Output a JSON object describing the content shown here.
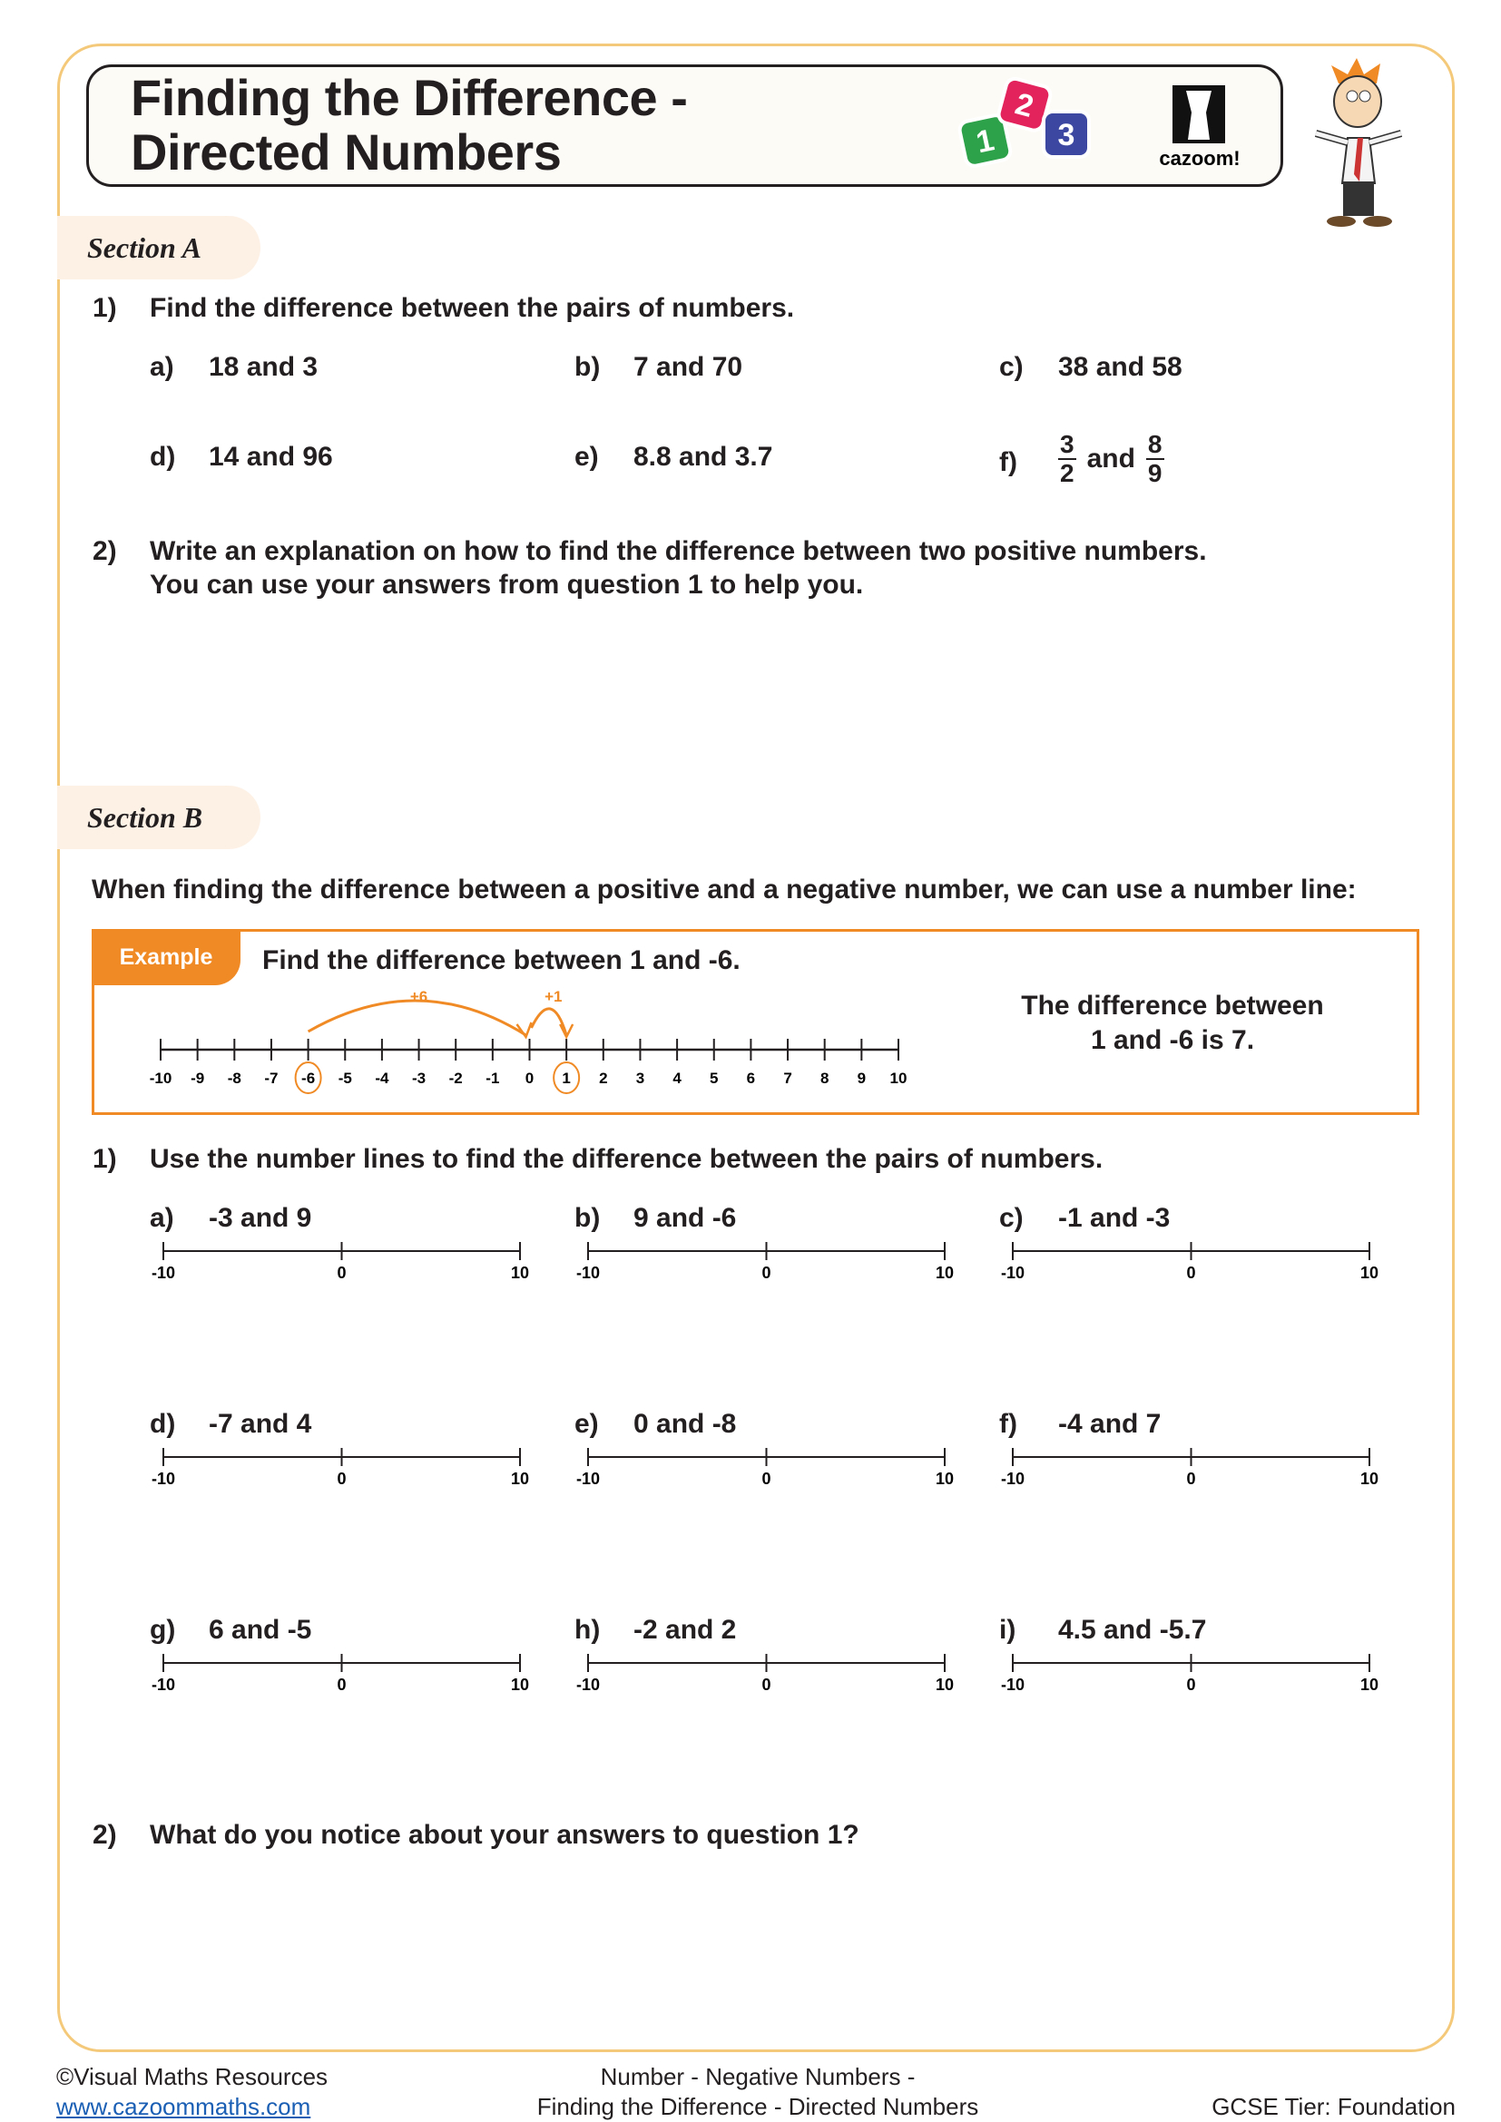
{
  "header": {
    "title_line1": "Finding the Difference -",
    "title_line2": "Directed Numbers",
    "logo_blocks": [
      "1",
      "2",
      "3"
    ],
    "logo_text": "cazoom!"
  },
  "colors": {
    "accent": "#f08a24",
    "frame": "#f4c97a",
    "tab_bg": "#fdf1e6",
    "block1": "#2ea24a",
    "block2": "#e3245c",
    "block3": "#3b47a0"
  },
  "section_a": {
    "label": "Section A",
    "q1": {
      "num": "1)",
      "text": "Find the difference between the pairs of numbers.",
      "items": [
        {
          "label": "a)",
          "value": "18 and 3"
        },
        {
          "label": "b)",
          "value": "7 and 70"
        },
        {
          "label": "c)",
          "value": "38 and 58"
        },
        {
          "label": "d)",
          "value": "14 and 96"
        },
        {
          "label": "e)",
          "value": "8.8 and 3.7"
        }
      ],
      "item_f": {
        "label": "f)",
        "num1": "3",
        "den1": "2",
        "and": "and",
        "num2": "8",
        "den2": "9"
      }
    },
    "q2": {
      "num": "2)",
      "line1": "Write an explanation on how to find the difference between two positive numbers.",
      "line2": "You can use your answers from question 1 to help you."
    }
  },
  "section_b": {
    "label": "Section B",
    "intro": "When finding the difference between a positive and a negative number, we can use a number line:",
    "example": {
      "tab": "Example",
      "question": "Find the difference between 1 and -6.",
      "jump1": "+6",
      "jump2": "+1",
      "min": -10,
      "max": 10,
      "circled": [
        -6,
        1
      ],
      "answer_line1": "The difference between",
      "answer_line2": "1 and -6 is 7."
    },
    "q1": {
      "num": "1)",
      "text": "Use the number lines to find the difference between the pairs of numbers.",
      "items": [
        {
          "label": "a)",
          "value": "-3 and 9"
        },
        {
          "label": "b)",
          "value": "9 and -6"
        },
        {
          "label": "c)",
          "value": "-1 and -3"
        },
        {
          "label": "d)",
          "value": "-7 and 4"
        },
        {
          "label": "e)",
          "value": "0 and -8"
        },
        {
          "label": "f)",
          "value": "-4 and 7"
        },
        {
          "label": "g)",
          "value": "6 and -5"
        },
        {
          "label": "h)",
          "value": "-2 and 2"
        },
        {
          "label": "i)",
          "value": "4.5 and -5.7"
        }
      ],
      "line_ticks": [
        "-10",
        "0",
        "10"
      ]
    },
    "q2": {
      "num": "2)",
      "text": "What do you notice about your answers to question 1?"
    }
  },
  "footer": {
    "copyright": "©Visual Maths Resources",
    "link": "www.cazoommaths.com",
    "center_line1": "Number - Negative Numbers -",
    "center_line2": "Finding the Difference - Directed Numbers",
    "tier": "GCSE Tier: Foundation"
  }
}
